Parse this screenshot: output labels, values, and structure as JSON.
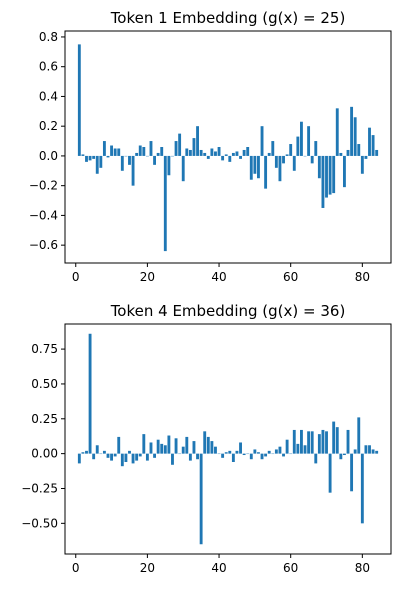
{
  "bar_color": "#1f77b4",
  "chart_data": [
    {
      "type": "bar",
      "title": "Token 1 Embedding (g(x) = 25)",
      "xlabel": "",
      "ylabel": "",
      "xlim": [
        -3,
        88
      ],
      "ylim": [
        -0.72,
        0.84
      ],
      "xticks": [
        0,
        20,
        40,
        60,
        80
      ],
      "yticks": [
        -0.6,
        -0.4,
        -0.2,
        0.0,
        0.2,
        0.4,
        0.6,
        0.8
      ],
      "ytick_labels": [
        "−0.6",
        "−0.4",
        "−0.2",
        "0.0",
        "0.2",
        "0.4",
        "0.6",
        "0.8"
      ],
      "x": [
        1,
        2,
        3,
        4,
        5,
        6,
        7,
        8,
        9,
        10,
        11,
        12,
        13,
        14,
        15,
        16,
        17,
        18,
        19,
        20,
        21,
        22,
        23,
        24,
        25,
        26,
        27,
        28,
        29,
        30,
        31,
        32,
        33,
        34,
        35,
        36,
        37,
        38,
        39,
        40,
        41,
        42,
        43,
        44,
        45,
        46,
        47,
        48,
        49,
        50,
        51,
        52,
        53,
        54,
        55,
        56,
        57,
        58,
        59,
        60,
        61,
        62,
        63,
        64,
        65,
        66,
        67,
        68,
        69,
        70,
        71,
        72,
        73,
        74,
        75,
        76,
        77,
        78,
        79,
        80,
        81,
        82,
        83,
        84
      ],
      "values": [
        0.75,
        0.01,
        -0.04,
        -0.03,
        -0.02,
        -0.12,
        -0.08,
        0.1,
        -0.01,
        0.07,
        0.05,
        0.05,
        -0.1,
        0.0,
        -0.06,
        -0.2,
        0.02,
        0.07,
        0.06,
        0.0,
        0.1,
        -0.06,
        0.02,
        0.06,
        -0.64,
        -0.13,
        0.0,
        0.1,
        0.15,
        -0.17,
        0.05,
        0.04,
        0.12,
        0.2,
        0.04,
        0.02,
        -0.02,
        0.05,
        0.03,
        0.06,
        -0.03,
        0.01,
        -0.04,
        0.02,
        0.03,
        -0.02,
        0.04,
        0.06,
        -0.16,
        -0.12,
        -0.15,
        0.2,
        -0.22,
        0.02,
        0.1,
        -0.08,
        -0.17,
        -0.05,
        0.01,
        0.08,
        -0.1,
        0.13,
        0.23,
        0.0,
        0.2,
        -0.05,
        0.1,
        -0.15,
        -0.35,
        -0.28,
        -0.26,
        -0.25,
        0.32,
        0.02,
        -0.21,
        0.04,
        0.33,
        0.26,
        0.08,
        -0.12,
        -0.02,
        0.19,
        0.14,
        0.04
      ]
    },
    {
      "type": "bar",
      "title": "Token 4 Embedding (g(x) = 36)",
      "xlabel": "",
      "ylabel": "",
      "xlim": [
        -3,
        88
      ],
      "ylim": [
        -0.72,
        0.93
      ],
      "xticks": [
        0,
        20,
        40,
        60,
        80
      ],
      "yticks": [
        -0.5,
        -0.25,
        0.0,
        0.25,
        0.5,
        0.75
      ],
      "ytick_labels": [
        "−0.50",
        "−0.25",
        "0.00",
        "0.25",
        "0.50",
        "0.75"
      ],
      "x": [
        1,
        2,
        3,
        4,
        5,
        6,
        7,
        8,
        9,
        10,
        11,
        12,
        13,
        14,
        15,
        16,
        17,
        18,
        19,
        20,
        21,
        22,
        23,
        24,
        25,
        26,
        27,
        28,
        29,
        30,
        31,
        32,
        33,
        34,
        35,
        36,
        37,
        38,
        39,
        40,
        41,
        42,
        43,
        44,
        45,
        46,
        47,
        48,
        49,
        50,
        51,
        52,
        53,
        54,
        55,
        56,
        57,
        58,
        59,
        60,
        61,
        62,
        63,
        64,
        65,
        66,
        67,
        68,
        69,
        70,
        71,
        72,
        73,
        74,
        75,
        76,
        77,
        78,
        79,
        80,
        81,
        82,
        83,
        84
      ],
      "values": [
        -0.07,
        0.01,
        0.02,
        0.86,
        -0.04,
        0.06,
        0.0,
        0.02,
        -0.03,
        -0.05,
        -0.02,
        0.12,
        -0.09,
        -0.06,
        0.02,
        -0.07,
        -0.05,
        -0.02,
        0.14,
        -0.05,
        0.08,
        -0.03,
        0.1,
        0.07,
        0.06,
        0.13,
        -0.08,
        0.11,
        0.0,
        0.05,
        0.12,
        -0.05,
        0.09,
        -0.04,
        -0.65,
        0.16,
        0.12,
        0.09,
        0.05,
        0.0,
        -0.03,
        0.01,
        0.02,
        -0.06,
        0.02,
        0.08,
        -0.01,
        0.0,
        -0.04,
        0.03,
        0.01,
        -0.04,
        -0.02,
        0.02,
        0.0,
        0.03,
        0.05,
        -0.02,
        0.1,
        0.0,
        0.17,
        0.07,
        0.17,
        0.06,
        0.16,
        0.16,
        -0.07,
        0.14,
        0.17,
        0.16,
        -0.28,
        0.23,
        0.19,
        -0.04,
        -0.01,
        0.17,
        -0.27,
        0.03,
        0.26,
        -0.5,
        0.06,
        0.06,
        0.03,
        0.02
      ]
    }
  ]
}
